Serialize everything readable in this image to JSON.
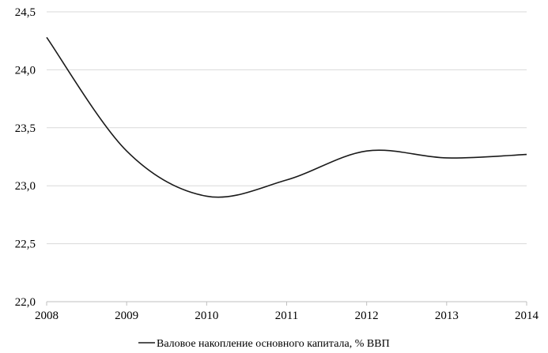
{
  "chart_data": {
    "type": "line",
    "title": "",
    "xlabel": "",
    "ylabel": "",
    "x": [
      2008,
      2009,
      2010,
      2011,
      2012,
      2013,
      2014
    ],
    "x_tick_labels": [
      "2008",
      "2009",
      "2010",
      "2011",
      "2012",
      "2013",
      "2014"
    ],
    "y_tick_values": [
      22.0,
      22.5,
      23.0,
      23.5,
      24.0,
      24.5
    ],
    "y_tick_labels": [
      "22,0",
      "22,5",
      "23,0",
      "23,5",
      "24,0",
      "24,5"
    ],
    "ylim": [
      22.0,
      24.5
    ],
    "xlim": [
      2008,
      2014
    ],
    "grid": "horizontal",
    "legend_position": "bottom",
    "series": [
      {
        "name": "Валовое накопление основного капитала, % ВВП",
        "color": "#1a1a1a",
        "values": [
          24.28,
          23.3,
          22.91,
          23.05,
          23.3,
          23.24,
          23.27
        ]
      }
    ]
  }
}
